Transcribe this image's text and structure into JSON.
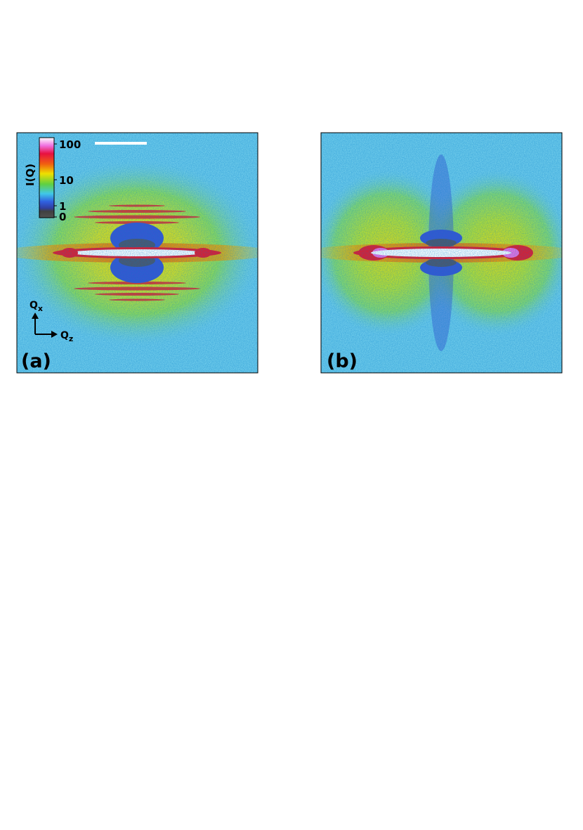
{
  "panels": [
    {
      "label": "(a)"
    },
    {
      "label": "(b)"
    }
  ],
  "colorbar": {
    "label": "I(Q)",
    "ticks": [
      100,
      10,
      1,
      0
    ]
  },
  "axes": {
    "vertical": {
      "symbol": "Q",
      "subscript": "x"
    },
    "horizontal": {
      "symbol": "Q",
      "subscript": "z"
    }
  }
}
